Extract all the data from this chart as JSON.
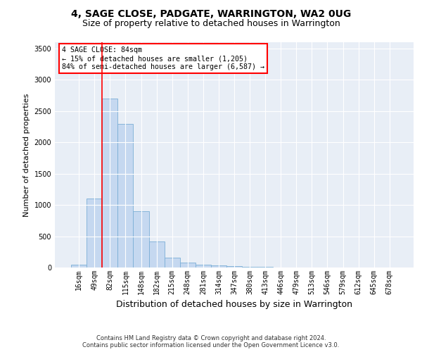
{
  "title": "4, SAGE CLOSE, PADGATE, WARRINGTON, WA2 0UG",
  "subtitle": "Size of property relative to detached houses in Warrington",
  "xlabel": "Distribution of detached houses by size in Warrington",
  "ylabel": "Number of detached properties",
  "bar_color": "#c5d8f0",
  "bar_edge_color": "#7aaed6",
  "categories": [
    "16sqm",
    "49sqm",
    "82sqm",
    "115sqm",
    "148sqm",
    "182sqm",
    "215sqm",
    "248sqm",
    "281sqm",
    "314sqm",
    "347sqm",
    "380sqm",
    "413sqm",
    "446sqm",
    "479sqm",
    "513sqm",
    "546sqm",
    "579sqm",
    "612sqm",
    "645sqm",
    "678sqm"
  ],
  "values": [
    50,
    1100,
    2700,
    2300,
    900,
    420,
    160,
    80,
    50,
    35,
    20,
    10,
    7,
    5,
    3,
    2,
    1,
    1,
    0,
    0,
    0
  ],
  "ylim": [
    0,
    3600
  ],
  "yticks": [
    0,
    500,
    1000,
    1500,
    2000,
    2500,
    3000,
    3500
  ],
  "red_line_x": 1.5,
  "annotation_text": "4 SAGE CLOSE: 84sqm\n← 15% of detached houses are smaller (1,205)\n84% of semi-detached houses are larger (6,587) →",
  "footer_line1": "Contains HM Land Registry data © Crown copyright and database right 2024.",
  "footer_line2": "Contains public sector information licensed under the Open Government Licence v3.0.",
  "bg_color": "#e8eef6",
  "grid_color": "#ffffff",
  "title_fontsize": 10,
  "subtitle_fontsize": 9,
  "xlabel_fontsize": 9,
  "ylabel_fontsize": 8,
  "tick_fontsize": 7,
  "footer_fontsize": 6
}
